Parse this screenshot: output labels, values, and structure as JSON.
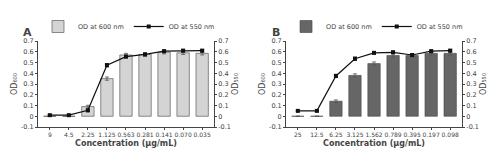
{
  "chart_data": [
    {
      "type": "bar",
      "title": "A",
      "categories": [
        "9",
        "4.5",
        "2.25",
        "1.125",
        "0.563",
        "0.281",
        "0.141",
        "0.070",
        "0.035"
      ],
      "xlabel": "Concentration (μg/mL)",
      "ylabel": "OD₆₀₀",
      "y2label": "OD₅₅₀",
      "ylim": [
        -0.1,
        0.7
      ],
      "yticks": [
        -0.1,
        0,
        0.1,
        0.2,
        0.3,
        0.4,
        0.5,
        0.6,
        0.7
      ],
      "y2lim": [
        -0.1,
        0.7
      ],
      "y2ticks": [
        -0.1,
        0,
        0.1,
        0.2,
        0.3,
        0.4,
        0.5,
        0.6,
        0.7
      ],
      "grid": false,
      "legend": "upper left",
      "series": [
        {
          "name": "OD at 600 nm",
          "type": "bar",
          "color": "#d4d4d4",
          "values": [
            0.0,
            0.0,
            0.09,
            0.35,
            0.57,
            0.575,
            0.595,
            0.59,
            0.585
          ],
          "errors": [
            0.002,
            0.002,
            0.012,
            0.015,
            0.015,
            0.015,
            0.015,
            0.015,
            0.015
          ]
        },
        {
          "name": "OD at 550 nm",
          "type": "line",
          "color": "#111111",
          "marker": "square",
          "axis": "y2",
          "values": [
            0.01,
            0.01,
            0.055,
            0.475,
            0.555,
            0.575,
            0.605,
            0.61,
            0.61
          ],
          "errors": [
            0.005,
            0.005,
            0.012,
            0.015,
            0.012,
            0.012,
            0.012,
            0.012,
            0.012
          ]
        }
      ]
    },
    {
      "type": "bar",
      "title": "B",
      "categories": [
        "25",
        "12.5",
        "6.25",
        "3.125",
        "1.562",
        "0.789",
        "0.395",
        "0.197",
        "0.098"
      ],
      "xlabel": "Concentration (μg/mL)",
      "ylabel": "OD₆₀₀",
      "y2label": "OD₅₅₀",
      "ylim": [
        -0.1,
        0.7
      ],
      "yticks": [
        -0.1,
        0,
        0.1,
        0.2,
        0.3,
        0.4,
        0.5,
        0.6,
        0.7
      ],
      "y2lim": [
        -0.1,
        0.7
      ],
      "y2ticks": [
        -0.1,
        0,
        0.1,
        0.2,
        0.3,
        0.4,
        0.5,
        0.6,
        0.7
      ],
      "grid": false,
      "legend": "upper left",
      "series": [
        {
          "name": "OD at 600 nm",
          "type": "bar",
          "color": "#666666",
          "values": [
            0.0,
            0.0,
            0.14,
            0.38,
            0.49,
            0.565,
            0.565,
            0.585,
            0.585
          ],
          "errors": [
            0.002,
            0.002,
            0.012,
            0.015,
            0.015,
            0.015,
            0.015,
            0.015,
            0.015
          ]
        },
        {
          "name": "OD at 550 nm",
          "type": "line",
          "color": "#111111",
          "marker": "square",
          "axis": "y2",
          "values": [
            0.05,
            0.05,
            0.375,
            0.535,
            0.59,
            0.595,
            0.57,
            0.605,
            0.61
          ],
          "errors": [
            0.005,
            0.005,
            0.015,
            0.015,
            0.012,
            0.012,
            0.012,
            0.012,
            0.012
          ]
        }
      ]
    }
  ]
}
